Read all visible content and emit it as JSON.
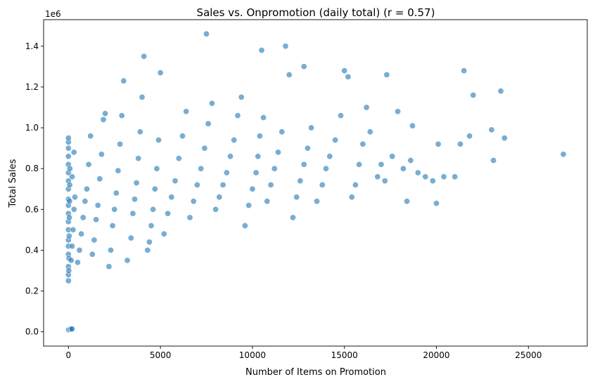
{
  "chart_data": {
    "type": "scatter",
    "title": "Sales vs. Onpromotion (daily total) (r = 0.57)",
    "xlabel": "Number of Items on Promotion",
    "ylabel": "Total Sales",
    "y_offset_label": "1e6",
    "xlim": [
      -1350,
      28200
    ],
    "ylim": [
      -70000,
      1530000
    ],
    "xticks": [
      0,
      5000,
      10000,
      15000,
      20000,
      25000
    ],
    "xtick_labels": [
      "0",
      "5000",
      "10000",
      "15000",
      "20000",
      "25000"
    ],
    "yticks": [
      0,
      200000,
      400000,
      600000,
      800000,
      1000000,
      1200000,
      1400000
    ],
    "ytick_labels": [
      "0.0",
      "0.2",
      "0.4",
      "0.6",
      "0.8",
      "1.0",
      "1.2",
      "1.4"
    ],
    "grid": false,
    "legend": "none",
    "marker_color": "#1f77b4",
    "marker_opacity": 0.6,
    "series": [
      {
        "points": [
          [
            0,
            10000
          ],
          [
            80,
            12000
          ],
          [
            150,
            15000
          ],
          [
            200,
            14000
          ],
          [
            0,
            250000
          ],
          [
            0,
            280000
          ],
          [
            0,
            320000
          ],
          [
            0,
            380000
          ],
          [
            0,
            420000
          ],
          [
            0,
            450000
          ],
          [
            0,
            500000
          ],
          [
            0,
            540000
          ],
          [
            0,
            580000
          ],
          [
            0,
            620000
          ],
          [
            0,
            650000
          ],
          [
            0,
            700000
          ],
          [
            0,
            740000
          ],
          [
            0,
            780000
          ],
          [
            0,
            820000
          ],
          [
            0,
            860000
          ],
          [
            0,
            900000
          ],
          [
            0,
            930000
          ],
          [
            0,
            950000
          ],
          [
            20,
            300000
          ],
          [
            30,
            360000
          ],
          [
            40,
            470000
          ],
          [
            50,
            560000
          ],
          [
            60,
            640000
          ],
          [
            70,
            720000
          ],
          [
            80,
            800000
          ],
          [
            150,
            350000
          ],
          [
            200,
            420000
          ],
          [
            250,
            500000
          ],
          [
            300,
            600000
          ],
          [
            350,
            660000
          ],
          [
            200,
            760000
          ],
          [
            300,
            880000
          ],
          [
            500,
            340000
          ],
          [
            600,
            400000
          ],
          [
            700,
            480000
          ],
          [
            800,
            560000
          ],
          [
            900,
            640000
          ],
          [
            1000,
            700000
          ],
          [
            1100,
            820000
          ],
          [
            1200,
            960000
          ],
          [
            1300,
            380000
          ],
          [
            1400,
            450000
          ],
          [
            1500,
            550000
          ],
          [
            1600,
            620000
          ],
          [
            1700,
            750000
          ],
          [
            1800,
            870000
          ],
          [
            1900,
            1040000
          ],
          [
            2000,
            1070000
          ],
          [
            2200,
            320000
          ],
          [
            2300,
            400000
          ],
          [
            2400,
            520000
          ],
          [
            2500,
            600000
          ],
          [
            2600,
            680000
          ],
          [
            2700,
            790000
          ],
          [
            2800,
            920000
          ],
          [
            2900,
            1060000
          ],
          [
            3000,
            1230000
          ],
          [
            3200,
            350000
          ],
          [
            3400,
            460000
          ],
          [
            3500,
            580000
          ],
          [
            3600,
            650000
          ],
          [
            3700,
            730000
          ],
          [
            3800,
            850000
          ],
          [
            3900,
            980000
          ],
          [
            4000,
            1150000
          ],
          [
            4100,
            1350000
          ],
          [
            4300,
            400000
          ],
          [
            4400,
            440000
          ],
          [
            4500,
            520000
          ],
          [
            4600,
            600000
          ],
          [
            4700,
            700000
          ],
          [
            4800,
            800000
          ],
          [
            4900,
            940000
          ],
          [
            5000,
            1270000
          ],
          [
            5200,
            480000
          ],
          [
            5400,
            580000
          ],
          [
            5600,
            660000
          ],
          [
            5800,
            740000
          ],
          [
            6000,
            850000
          ],
          [
            6200,
            960000
          ],
          [
            6400,
            1080000
          ],
          [
            6600,
            560000
          ],
          [
            6800,
            640000
          ],
          [
            7000,
            720000
          ],
          [
            7200,
            800000
          ],
          [
            7400,
            900000
          ],
          [
            7500,
            1460000
          ],
          [
            7600,
            1020000
          ],
          [
            7800,
            1120000
          ],
          [
            8000,
            600000
          ],
          [
            8200,
            660000
          ],
          [
            8400,
            720000
          ],
          [
            8600,
            780000
          ],
          [
            8800,
            860000
          ],
          [
            9000,
            940000
          ],
          [
            9200,
            1060000
          ],
          [
            9400,
            1150000
          ],
          [
            9600,
            520000
          ],
          [
            9800,
            620000
          ],
          [
            10000,
            700000
          ],
          [
            10200,
            780000
          ],
          [
            10300,
            860000
          ],
          [
            10400,
            960000
          ],
          [
            10500,
            1380000
          ],
          [
            10600,
            1050000
          ],
          [
            10800,
            640000
          ],
          [
            11000,
            720000
          ],
          [
            11200,
            800000
          ],
          [
            11400,
            880000
          ],
          [
            11600,
            980000
          ],
          [
            11800,
            1400000
          ],
          [
            12000,
            1260000
          ],
          [
            12200,
            560000
          ],
          [
            12400,
            660000
          ],
          [
            12600,
            740000
          ],
          [
            12800,
            820000
          ],
          [
            13000,
            900000
          ],
          [
            13200,
            1000000
          ],
          [
            12800,
            1300000
          ],
          [
            13500,
            640000
          ],
          [
            13800,
            720000
          ],
          [
            14000,
            800000
          ],
          [
            14200,
            860000
          ],
          [
            14500,
            940000
          ],
          [
            14800,
            1060000
          ],
          [
            15000,
            1280000
          ],
          [
            15200,
            1250000
          ],
          [
            15400,
            660000
          ],
          [
            15600,
            720000
          ],
          [
            15800,
            820000
          ],
          [
            16000,
            920000
          ],
          [
            16200,
            1100000
          ],
          [
            16400,
            980000
          ],
          [
            16800,
            760000
          ],
          [
            17000,
            820000
          ],
          [
            17200,
            740000
          ],
          [
            17300,
            1260000
          ],
          [
            17600,
            860000
          ],
          [
            17900,
            1080000
          ],
          [
            18200,
            800000
          ],
          [
            18400,
            640000
          ],
          [
            18600,
            840000
          ],
          [
            18700,
            1010000
          ],
          [
            19000,
            780000
          ],
          [
            19400,
            760000
          ],
          [
            19800,
            740000
          ],
          [
            20000,
            630000
          ],
          [
            20100,
            920000
          ],
          [
            20400,
            760000
          ],
          [
            21000,
            760000
          ],
          [
            21300,
            920000
          ],
          [
            21500,
            1280000
          ],
          [
            21800,
            960000
          ],
          [
            22000,
            1160000
          ],
          [
            23000,
            990000
          ],
          [
            23100,
            840000
          ],
          [
            23500,
            1180000
          ],
          [
            23700,
            950000
          ],
          [
            26900,
            870000
          ]
        ]
      }
    ]
  }
}
